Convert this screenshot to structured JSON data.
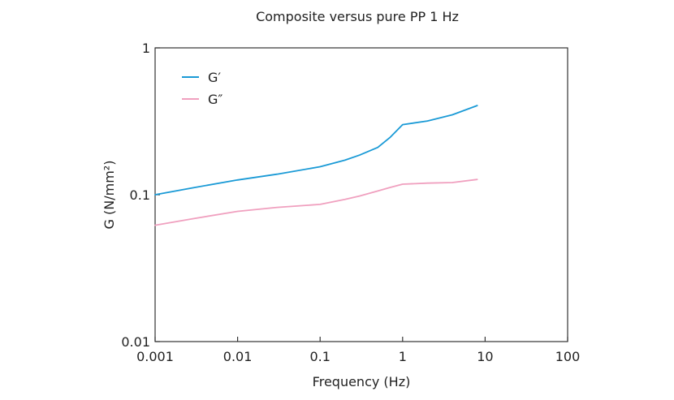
{
  "chart_data": {
    "type": "line",
    "title": "Composite versus pure PP 1 Hz",
    "xlabel": "Frequency (Hz)",
    "ylabel": "G (N/mm²)",
    "xscale": "log",
    "yscale": "log",
    "xlim": [
      0.001,
      100
    ],
    "ylim": [
      0.01,
      1
    ],
    "xticks": [
      "0.001",
      "0.01",
      "0.1",
      "1",
      "10",
      "100"
    ],
    "yticks": [
      "0.01",
      "0.1",
      "1"
    ],
    "grid": false,
    "legend_position": "top-left",
    "series": [
      {
        "name": "G′",
        "color": "#1a9ad6",
        "x": [
          0.001,
          0.003,
          0.01,
          0.03,
          0.1,
          0.2,
          0.3,
          0.5,
          0.7,
          1.0,
          2.0,
          4.0,
          8.0
        ],
        "y": [
          0.1,
          0.112,
          0.126,
          0.138,
          0.155,
          0.172,
          0.186,
          0.21,
          0.245,
          0.3,
          0.318,
          0.35,
          0.405
        ]
      },
      {
        "name": "G″",
        "color": "#f0a0bf",
        "x": [
          0.001,
          0.003,
          0.01,
          0.03,
          0.1,
          0.2,
          0.3,
          0.5,
          0.7,
          1.0,
          2.0,
          4.0,
          8.0
        ],
        "y": [
          0.062,
          0.069,
          0.077,
          0.082,
          0.086,
          0.093,
          0.098,
          0.106,
          0.112,
          0.118,
          0.12,
          0.121,
          0.127
        ]
      }
    ]
  }
}
